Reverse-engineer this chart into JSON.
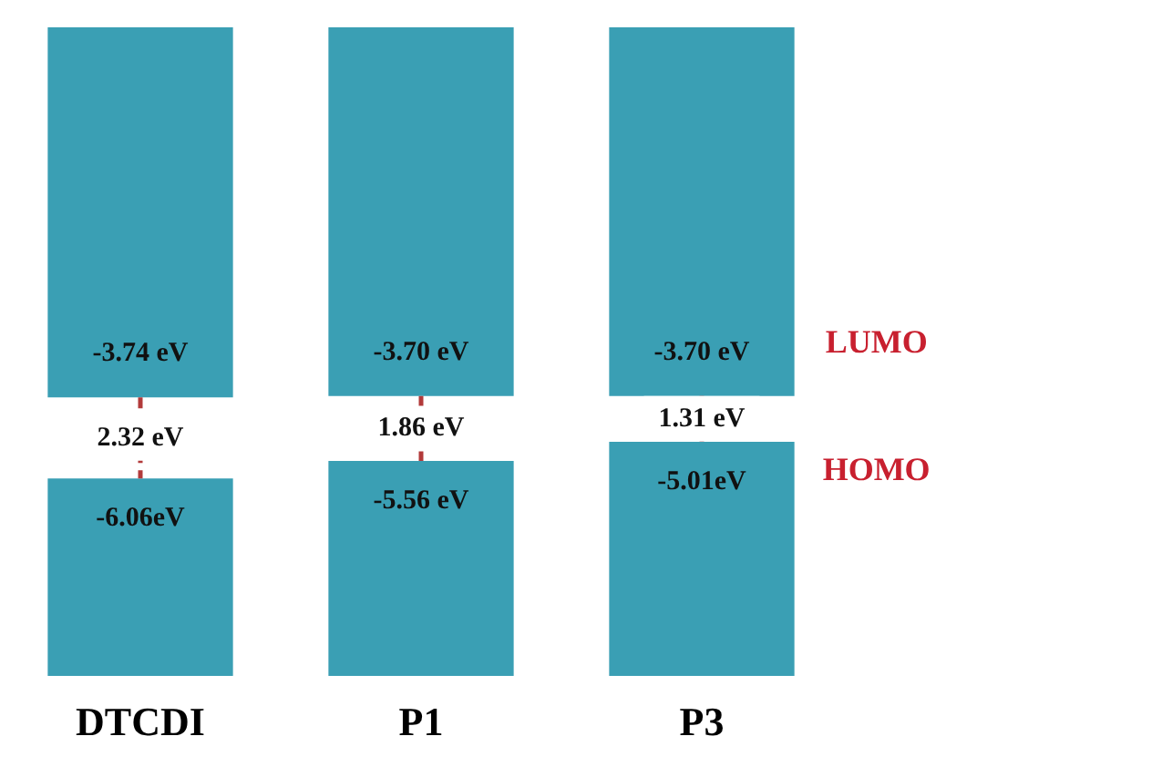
{
  "chart_data": {
    "type": "other",
    "categories": [
      "DTCDI",
      "P1",
      "P3"
    ],
    "series": [
      {
        "name": "LUMO",
        "color": "#3a9fb4",
        "values": [
          -3.74,
          -3.7,
          -3.7
        ],
        "value_labels": [
          "-3.74 eV",
          "-3.70 eV",
          "-3.70 eV"
        ]
      },
      {
        "name": "HOMO",
        "color": "#3a9fb4",
        "values": [
          -6.06,
          -5.56,
          -5.01
        ],
        "value_labels": [
          "-6.06eV",
          "-5.56 eV",
          "-5.01eV"
        ]
      }
    ],
    "annotations": [
      {
        "text": "2.32 eV",
        "x": "DTCDI"
      },
      {
        "text": "1.86 eV",
        "x": "P1"
      },
      {
        "text": "1.31 eV",
        "x": "P3"
      }
    ]
  }
}
